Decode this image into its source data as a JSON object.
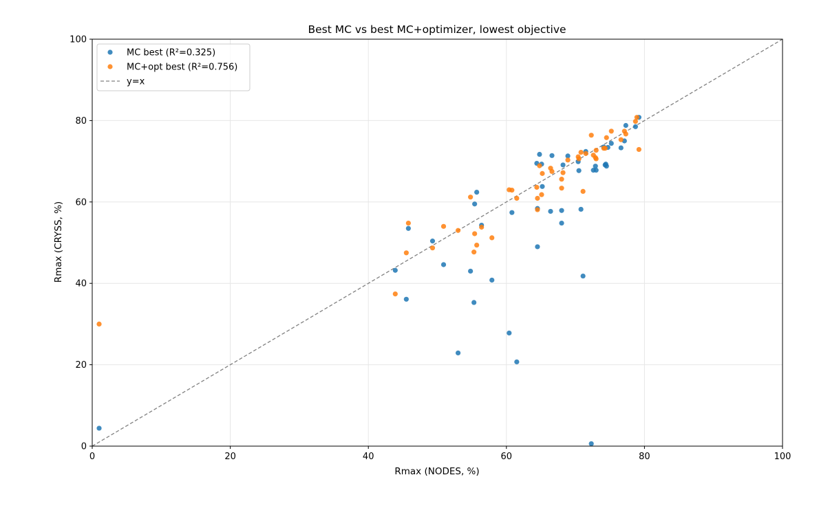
{
  "chart_data": {
    "type": "scatter",
    "title": "Best MC vs best MC+optimizer, lowest objective",
    "xlabel": "Rmax (NODES, %)",
    "ylabel": "Rmax (CRYSS, %)",
    "xlim": [
      0,
      100
    ],
    "ylim": [
      0,
      100
    ],
    "x_ticks": [
      0,
      20,
      40,
      60,
      80,
      100
    ],
    "y_ticks": [
      0,
      20,
      40,
      60,
      80,
      100
    ],
    "grid": true,
    "legend_position": "top-left",
    "series": [
      {
        "name": "MC best (R²=0.325)",
        "color": "#1f77b4",
        "points": [
          [
            1.0,
            4.4
          ],
          [
            43.9,
            43.2
          ],
          [
            45.5,
            36.1
          ],
          [
            45.8,
            53.5
          ],
          [
            49.3,
            50.4
          ],
          [
            50.9,
            44.6
          ],
          [
            53.0,
            22.9
          ],
          [
            54.8,
            43.0
          ],
          [
            55.3,
            35.3
          ],
          [
            55.4,
            59.5
          ],
          [
            55.7,
            62.4
          ],
          [
            56.4,
            54.3
          ],
          [
            57.9,
            40.8
          ],
          [
            60.4,
            27.8
          ],
          [
            60.8,
            57.4
          ],
          [
            61.5,
            20.7
          ],
          [
            64.4,
            69.5
          ],
          [
            64.5,
            58.4
          ],
          [
            64.5,
            49.0
          ],
          [
            64.8,
            71.7
          ],
          [
            65.1,
            69.3
          ],
          [
            65.2,
            63.8
          ],
          [
            66.4,
            57.7
          ],
          [
            66.6,
            71.4
          ],
          [
            68.0,
            57.9
          ],
          [
            68.0,
            54.8
          ],
          [
            68.2,
            69.1
          ],
          [
            68.9,
            71.3
          ],
          [
            70.4,
            69.9
          ],
          [
            70.5,
            67.7
          ],
          [
            70.8,
            58.2
          ],
          [
            71.1,
            41.8
          ],
          [
            71.5,
            72.4
          ],
          [
            72.3,
            0.6
          ],
          [
            72.6,
            67.8
          ],
          [
            72.9,
            68.8
          ],
          [
            73.0,
            67.8
          ],
          [
            74.1,
            73.5
          ],
          [
            74.3,
            69.1
          ],
          [
            74.5,
            68.8
          ],
          [
            75.2,
            74.4
          ],
          [
            76.6,
            73.3
          ],
          [
            77.1,
            75.0
          ],
          [
            77.3,
            78.8
          ],
          [
            78.7,
            78.5
          ],
          [
            79.2,
            80.8
          ],
          [
            74.7,
            73.4
          ],
          [
            74.4,
            69.3
          ]
        ]
      },
      {
        "name": "MC+opt best (R²=0.756)",
        "color": "#ff7f0e",
        "points": [
          [
            1.0,
            30.0
          ],
          [
            43.9,
            37.4
          ],
          [
            45.5,
            47.5
          ],
          [
            45.8,
            54.8
          ],
          [
            49.3,
            48.7
          ],
          [
            50.9,
            54.0
          ],
          [
            53.0,
            53.0
          ],
          [
            54.8,
            61.2
          ],
          [
            55.3,
            47.7
          ],
          [
            55.4,
            52.2
          ],
          [
            55.7,
            49.4
          ],
          [
            56.4,
            53.8
          ],
          [
            57.9,
            51.2
          ],
          [
            60.4,
            63.0
          ],
          [
            60.8,
            62.9
          ],
          [
            61.5,
            60.9
          ],
          [
            64.4,
            63.6
          ],
          [
            64.5,
            60.9
          ],
          [
            64.5,
            58.1
          ],
          [
            64.8,
            68.9
          ],
          [
            65.1,
            61.8
          ],
          [
            65.2,
            67.0
          ],
          [
            66.4,
            68.3
          ],
          [
            66.6,
            67.5
          ],
          [
            68.0,
            65.6
          ],
          [
            68.0,
            63.4
          ],
          [
            68.2,
            67.2
          ],
          [
            68.9,
            70.3
          ],
          [
            70.4,
            71.1
          ],
          [
            70.5,
            70.6
          ],
          [
            70.8,
            72.2
          ],
          [
            71.1,
            62.6
          ],
          [
            71.5,
            71.9
          ],
          [
            72.3,
            76.4
          ],
          [
            72.6,
            71.5
          ],
          [
            72.9,
            70.9
          ],
          [
            73.0,
            70.6
          ],
          [
            74.1,
            73.2
          ],
          [
            74.3,
            73.2
          ],
          [
            74.5,
            75.8
          ],
          [
            75.2,
            77.4
          ],
          [
            76.6,
            75.3
          ],
          [
            77.1,
            77.4
          ],
          [
            77.3,
            76.7
          ],
          [
            78.7,
            79.8
          ],
          [
            79.2,
            72.9
          ],
          [
            78.9,
            80.8
          ],
          [
            73.0,
            72.7
          ]
        ]
      }
    ],
    "reference_line": {
      "name": "y=x",
      "color": "#808080",
      "style": "dashed",
      "from": [
        0,
        0
      ],
      "to": [
        100,
        100
      ]
    }
  }
}
